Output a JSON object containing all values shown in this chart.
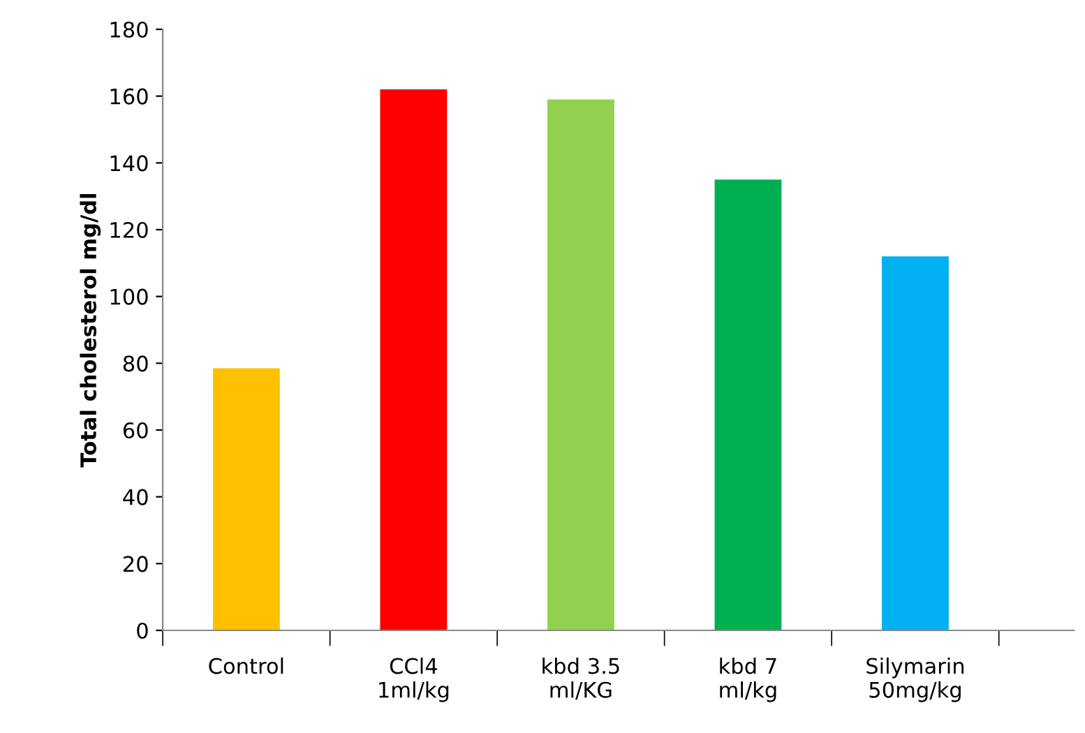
{
  "chart_data": {
    "type": "bar",
    "ylabel": "Total cholesterol mg/dl",
    "categories": [
      "Control",
      "CCl4\n1ml/kg",
      "kbd 3.5\nml/KG",
      "kbd 7\nml/kg",
      "Silymarin\n50mg/kg"
    ],
    "values": [
      78.5,
      162,
      159,
      135,
      112
    ],
    "colors": [
      "#ffc000",
      "#ff0000",
      "#92d050",
      "#00b050",
      "#00b0f0"
    ],
    "ylim": [
      0,
      180
    ],
    "yticks": [
      0,
      20,
      40,
      60,
      80,
      100,
      120,
      140,
      160,
      180
    ],
    "grid": false,
    "legend": false
  }
}
